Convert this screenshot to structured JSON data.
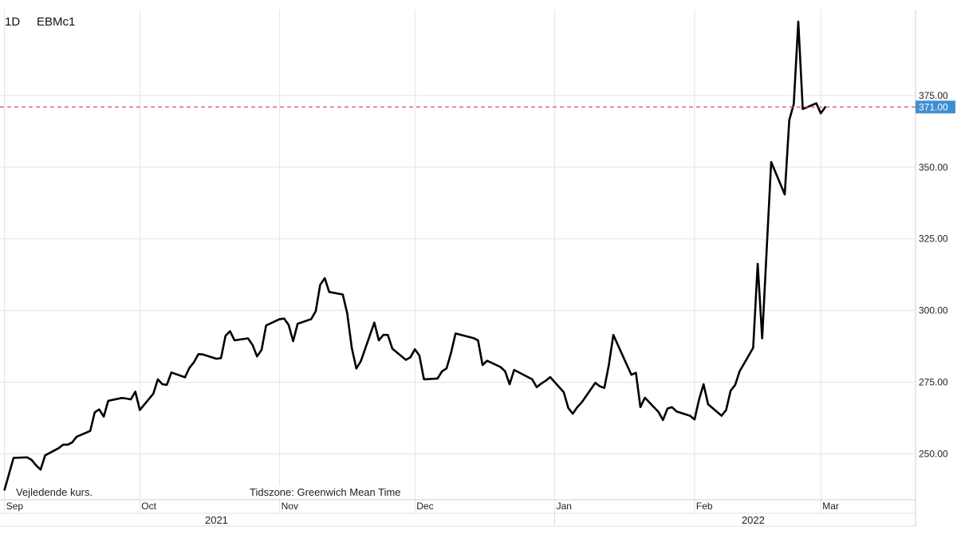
{
  "header": {
    "interval": "1D",
    "symbol": "EBMc1"
  },
  "notes": {
    "left": "Vejledende kurs.",
    "timezone": "Tidszone: Greenwich Mean Time"
  },
  "colors": {
    "line": "#000000",
    "grid": "#e3e3e3",
    "last_line": "#d9534f",
    "last_badge": "#3d8fd1"
  },
  "chart_data": {
    "type": "line",
    "title": "",
    "xlabel": "",
    "ylabel": "",
    "ylim": [
      234,
      405
    ],
    "yticks": [
      250,
      275,
      300,
      325,
      350,
      375
    ],
    "ytick_labels": [
      "250.00",
      "275.00",
      "300.00",
      "325.00",
      "350.00",
      "375.00"
    ],
    "x_start": "2021-08-31",
    "x_end": "2022-03-22",
    "month_ticks": [
      {
        "label": "Sep",
        "date": "2021-09-01"
      },
      {
        "label": "Oct",
        "date": "2021-10-01"
      },
      {
        "label": "Nov",
        "date": "2021-11-01"
      },
      {
        "label": "Dec",
        "date": "2021-12-01"
      },
      {
        "label": "Jan",
        "date": "2022-01-01"
      },
      {
        "label": "Feb",
        "date": "2022-02-01"
      },
      {
        "label": "Mar",
        "date": "2022-03-01"
      }
    ],
    "year_labels": [
      {
        "label": "2021",
        "date": "2021-10-18"
      },
      {
        "label": "2022",
        "date": "2022-02-14"
      }
    ],
    "last_value": 371.0,
    "last_value_label": "371.00",
    "grid": true,
    "series": [
      {
        "values": [
          [
            "2021-09-01",
            237.5
          ],
          [
            "2021-09-02",
            243.0
          ],
          [
            "2021-09-03",
            248.6
          ],
          [
            "2021-09-06",
            248.8
          ],
          [
            "2021-09-07",
            247.9
          ],
          [
            "2021-09-08",
            246.0
          ],
          [
            "2021-09-09",
            244.5
          ],
          [
            "2021-09-10",
            249.5
          ],
          [
            "2021-09-13",
            252.0
          ],
          [
            "2021-09-14",
            253.2
          ],
          [
            "2021-09-15",
            253.2
          ],
          [
            "2021-09-16",
            254.0
          ],
          [
            "2021-09-17",
            256.0
          ],
          [
            "2021-09-20",
            258.0
          ],
          [
            "2021-09-21",
            264.5
          ],
          [
            "2021-09-22",
            265.5
          ],
          [
            "2021-09-23",
            263.0
          ],
          [
            "2021-09-24",
            268.5
          ],
          [
            "2021-09-27",
            269.5
          ],
          [
            "2021-09-28",
            269.3
          ],
          [
            "2021-09-29",
            269.0
          ],
          [
            "2021-09-30",
            271.7
          ],
          [
            "2021-10-01",
            265.3
          ],
          [
            "2021-10-04",
            271.0
          ],
          [
            "2021-10-05",
            276.0
          ],
          [
            "2021-10-06",
            274.3
          ],
          [
            "2021-10-07",
            274.1
          ],
          [
            "2021-10-08",
            278.4
          ],
          [
            "2021-10-11",
            276.7
          ],
          [
            "2021-10-12",
            280.0
          ],
          [
            "2021-10-13",
            282.0
          ],
          [
            "2021-10-14",
            284.8
          ],
          [
            "2021-10-15",
            284.7
          ],
          [
            "2021-10-18",
            283.2
          ],
          [
            "2021-10-19",
            283.4
          ],
          [
            "2021-10-20",
            291.2
          ],
          [
            "2021-10-21",
            292.8
          ],
          [
            "2021-10-22",
            289.6
          ],
          [
            "2021-10-25",
            290.3
          ],
          [
            "2021-10-26",
            288.0
          ],
          [
            "2021-10-27",
            284.0
          ],
          [
            "2021-10-28",
            286.3
          ],
          [
            "2021-10-29",
            294.8
          ],
          [
            "2021-11-01",
            297.0
          ],
          [
            "2021-11-02",
            297.2
          ],
          [
            "2021-11-03",
            295.0
          ],
          [
            "2021-11-04",
            289.3
          ],
          [
            "2021-11-05",
            295.4
          ],
          [
            "2021-11-08",
            297.0
          ],
          [
            "2021-11-09",
            299.8
          ],
          [
            "2021-11-10",
            309.0
          ],
          [
            "2021-11-11",
            311.3
          ],
          [
            "2021-11-12",
            306.5
          ],
          [
            "2021-11-15",
            305.6
          ],
          [
            "2021-11-16",
            299.0
          ],
          [
            "2021-11-17",
            287.0
          ],
          [
            "2021-11-18",
            279.8
          ],
          [
            "2021-11-19",
            282.3
          ],
          [
            "2021-11-22",
            295.8
          ],
          [
            "2021-11-23",
            289.6
          ],
          [
            "2021-11-24",
            291.5
          ],
          [
            "2021-11-25",
            291.5
          ],
          [
            "2021-11-26",
            286.7
          ],
          [
            "2021-11-29",
            282.8
          ],
          [
            "2021-11-30",
            283.7
          ],
          [
            "2021-12-01",
            286.5
          ],
          [
            "2021-12-02",
            284.3
          ],
          [
            "2021-12-03",
            276.0
          ],
          [
            "2021-12-06",
            276.3
          ],
          [
            "2021-12-07",
            278.8
          ],
          [
            "2021-12-08",
            279.8
          ],
          [
            "2021-12-09",
            285.2
          ],
          [
            "2021-12-10",
            292.0
          ],
          [
            "2021-12-13",
            290.8
          ],
          [
            "2021-12-14",
            290.4
          ],
          [
            "2021-12-15",
            289.6
          ],
          [
            "2021-12-16",
            281.0
          ],
          [
            "2021-12-17",
            282.5
          ],
          [
            "2021-12-20",
            280.3
          ],
          [
            "2021-12-21",
            278.8
          ],
          [
            "2021-12-22",
            274.3
          ],
          [
            "2021-12-23",
            279.3
          ],
          [
            "2021-12-27",
            276.0
          ],
          [
            "2021-12-28",
            273.3
          ],
          [
            "2021-12-29",
            274.5
          ],
          [
            "2021-12-30",
            275.5
          ],
          [
            "2021-12-31",
            276.8
          ],
          [
            "2022-01-03",
            271.5
          ],
          [
            "2022-01-04",
            266.0
          ],
          [
            "2022-01-05",
            264.0
          ],
          [
            "2022-01-06",
            266.3
          ],
          [
            "2022-01-07",
            268.0
          ],
          [
            "2022-01-10",
            274.8
          ],
          [
            "2022-01-11",
            273.6
          ],
          [
            "2022-01-12",
            273.0
          ],
          [
            "2022-01-13",
            281.0
          ],
          [
            "2022-01-14",
            291.5
          ],
          [
            "2022-01-17",
            281.0
          ],
          [
            "2022-01-18",
            277.6
          ],
          [
            "2022-01-19",
            278.3
          ],
          [
            "2022-01-20",
            266.3
          ],
          [
            "2022-01-21",
            269.6
          ],
          [
            "2022-01-24",
            264.6
          ],
          [
            "2022-01-25",
            261.8
          ],
          [
            "2022-01-26",
            265.8
          ],
          [
            "2022-01-27",
            266.3
          ],
          [
            "2022-01-28",
            264.8
          ],
          [
            "2022-01-31",
            263.3
          ],
          [
            "2022-02-01",
            262.0
          ],
          [
            "2022-02-02",
            269.0
          ],
          [
            "2022-02-03",
            274.3
          ],
          [
            "2022-02-04",
            267.3
          ],
          [
            "2022-02-07",
            263.3
          ],
          [
            "2022-02-08",
            265.3
          ],
          [
            "2022-02-09",
            272.0
          ],
          [
            "2022-02-10",
            274.0
          ],
          [
            "2022-02-11",
            278.8
          ],
          [
            "2022-02-14",
            287.0
          ],
          [
            "2022-02-15",
            316.3
          ],
          [
            "2022-02-16",
            290.3
          ],
          [
            "2022-02-17",
            321.5
          ],
          [
            "2022-02-18",
            351.8
          ],
          [
            "2022-02-21",
            340.5
          ],
          [
            "2022-02-22",
            366.5
          ],
          [
            "2022-02-23",
            372.0
          ],
          [
            "2022-02-24",
            400.8
          ],
          [
            "2022-02-25",
            370.3
          ],
          [
            "2022-02-28",
            372.3
          ],
          [
            "2022-03-01",
            368.8
          ],
          [
            "2022-03-02",
            371.0
          ]
        ]
      }
    ]
  }
}
